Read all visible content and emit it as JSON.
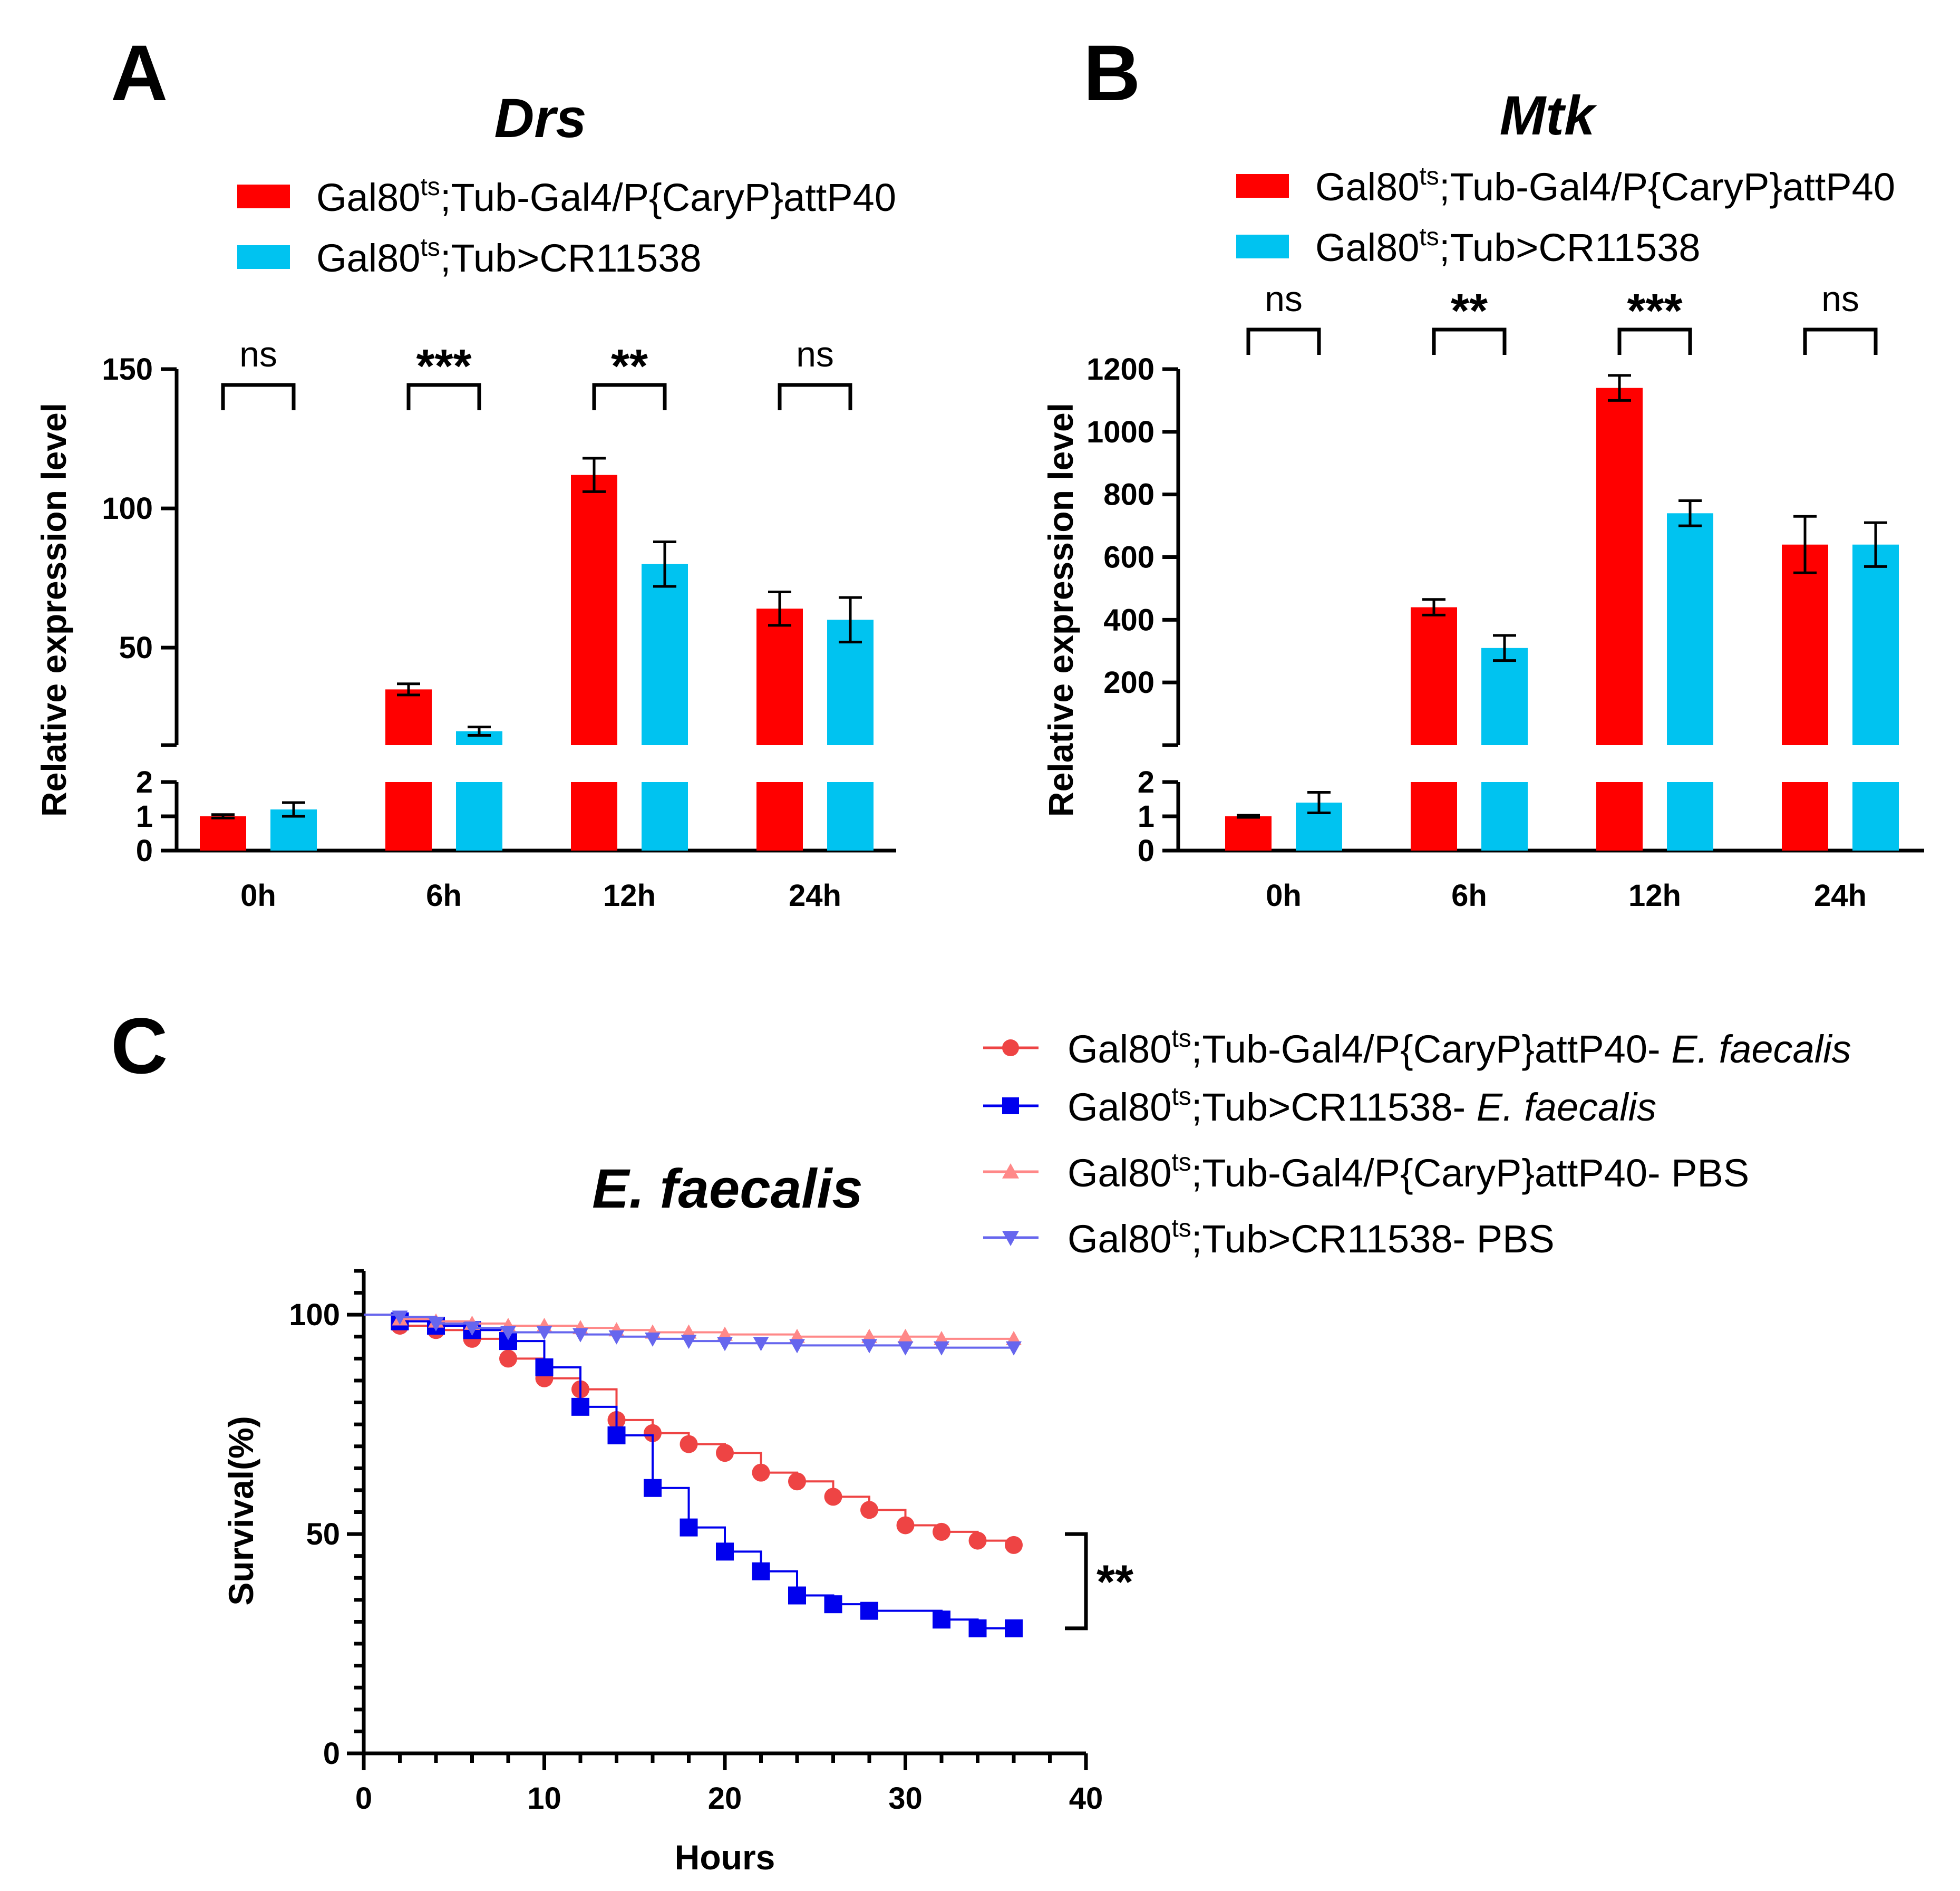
{
  "panels": {
    "A": {
      "letter": "A"
    },
    "B": {
      "letter": "B"
    },
    "C": {
      "letter": "C"
    }
  },
  "colors": {
    "control": "#ff0000",
    "knockdown": "#00c3f0",
    "curve_control_infected": "#ee4444",
    "curve_knockdown_infected": "#0000ee",
    "curve_control_pbs": "#ff8888",
    "curve_knockdown_pbs": "#6666ee"
  },
  "chart_data": [
    {
      "id": "A",
      "type": "bar",
      "title": "Drs",
      "ylabel": "Relative expression level",
      "xlabel": "",
      "categories": [
        "0h",
        "6h",
        "12h",
        "24h"
      ],
      "legend": [
        {
          "base": "Gal80",
          "sup": "ts",
          "rest": ";Tub-Gal4/P{CaryP}attP40"
        },
        {
          "base": "Gal80",
          "sup": "ts",
          "rest": ";Tub>CR11538"
        }
      ],
      "series": [
        {
          "name": "Gal80ts;Tub-Gal4/P{CaryP}attP40",
          "values": [
            1.0,
            35,
            112,
            64
          ],
          "errors": [
            0.05,
            2,
            6,
            6
          ]
        },
        {
          "name": "Gal80ts;Tub>CR11538",
          "values": [
            1.2,
            20,
            80,
            60
          ],
          "errors": [
            0.2,
            1.5,
            8,
            8
          ]
        }
      ],
      "y_lower_range": [
        0,
        2
      ],
      "y_upper_range": [
        15,
        150
      ],
      "y_lower_ticks": [
        "0",
        "1",
        "2"
      ],
      "y_upper_ticks": [
        "50",
        "100",
        "150"
      ],
      "significance": [
        "ns",
        "***",
        "**",
        "ns"
      ]
    },
    {
      "id": "B",
      "type": "bar",
      "title": "Mtk",
      "ylabel": "Relative expression level",
      "xlabel": "",
      "categories": [
        "0h",
        "6h",
        "12h",
        "24h"
      ],
      "legend": [
        {
          "base": "Gal80",
          "sup": "ts",
          "rest": ";Tub-Gal4/P{CaryP}attP40"
        },
        {
          "base": "Gal80",
          "sup": "ts",
          "rest": ";Tub>CR11538"
        }
      ],
      "series": [
        {
          "name": "Gal80ts;Tub-Gal4/P{CaryP}attP40",
          "values": [
            1.0,
            440,
            1140,
            640
          ],
          "errors": [
            0.03,
            25,
            40,
            90
          ]
        },
        {
          "name": "Gal80ts;Tub>CR11538",
          "values": [
            1.4,
            310,
            740,
            640
          ],
          "errors": [
            0.3,
            40,
            40,
            70
          ]
        }
      ],
      "y_lower_range": [
        0,
        2
      ],
      "y_upper_range": [
        0,
        1200
      ],
      "y_lower_ticks": [
        "0",
        "1",
        "2"
      ],
      "y_upper_ticks": [
        "200",
        "400",
        "600",
        "800",
        "1000",
        "1200"
      ],
      "significance": [
        "ns",
        "**",
        "***",
        "ns"
      ]
    },
    {
      "id": "C",
      "type": "line",
      "title": "E. faecalis",
      "xlabel": "Hours",
      "ylabel": "Survival(%)",
      "xlim": [
        0,
        40
      ],
      "ylim": [
        0,
        110
      ],
      "x_ticks": [
        "0",
        "10",
        "20",
        "30",
        "40"
      ],
      "y_ticks": [
        "0",
        "50",
        "100"
      ],
      "legend": [
        {
          "base": "Gal80",
          "sup": "ts",
          "rest": ";Tub-Gal4/P{CaryP}attP40- ",
          "italic": "E. faecalis"
        },
        {
          "base": "Gal80",
          "sup": "ts",
          "rest": ";Tub>CR11538- ",
          "italic": "E. faecalis"
        },
        {
          "base": "Gal80",
          "sup": "ts",
          "rest": ";Tub-Gal4/P{CaryP}attP40- PBS",
          "italic": ""
        },
        {
          "base": "Gal80",
          "sup": "ts",
          "rest": ";Tub>CR11538- PBS",
          "italic": ""
        }
      ],
      "series": [
        {
          "name": "Gal80ts;Tub-Gal4/P{CaryP}attP40- E. faecalis",
          "marker": "circle",
          "x": [
            2,
            4,
            6,
            8,
            10,
            12,
            14,
            16,
            18,
            20,
            22,
            24,
            26,
            28,
            30,
            32,
            34,
            36
          ],
          "y": [
            97.5,
            96.5,
            94.5,
            90,
            85.5,
            83,
            76,
            73,
            70.5,
            68.5,
            64,
            62,
            58.5,
            55.5,
            52,
            50.5,
            48.5,
            47.5
          ]
        },
        {
          "name": "Gal80ts;Tub>CR11538- E. faecalis",
          "marker": "square",
          "x": [
            2,
            4,
            6,
            8,
            10,
            12,
            14,
            16,
            18,
            20,
            22,
            24,
            26,
            28,
            32,
            34,
            36
          ],
          "y": [
            98.5,
            97.5,
            96.5,
            94,
            88,
            79,
            72.5,
            60.5,
            51.5,
            46,
            41.5,
            36,
            34,
            32.5,
            30.5,
            28.5,
            28.5
          ]
        },
        {
          "name": "Gal80ts;Tub-Gal4/P{CaryP}attP40- PBS",
          "marker": "triangle-up",
          "x": [
            2,
            4,
            6,
            8,
            10,
            12,
            14,
            16,
            18,
            20,
            24,
            28,
            30,
            32,
            36
          ],
          "y": [
            99,
            98.5,
            98,
            97.5,
            97.5,
            97,
            96.5,
            96,
            96,
            95.5,
            95,
            95,
            95,
            94.5,
            94.5
          ]
        },
        {
          "name": "Gal80ts;Tub>CR11538- PBS",
          "marker": "triangle-down",
          "x": [
            2,
            4,
            6,
            8,
            10,
            12,
            14,
            16,
            18,
            20,
            22,
            24,
            28,
            30,
            32,
            36
          ],
          "y": [
            99.5,
            98,
            97,
            96,
            96,
            95.5,
            95,
            94.5,
            94,
            93.5,
            93.5,
            93,
            93,
            92.5,
            92.5,
            92.5
          ]
        }
      ],
      "significance": "**"
    }
  ]
}
